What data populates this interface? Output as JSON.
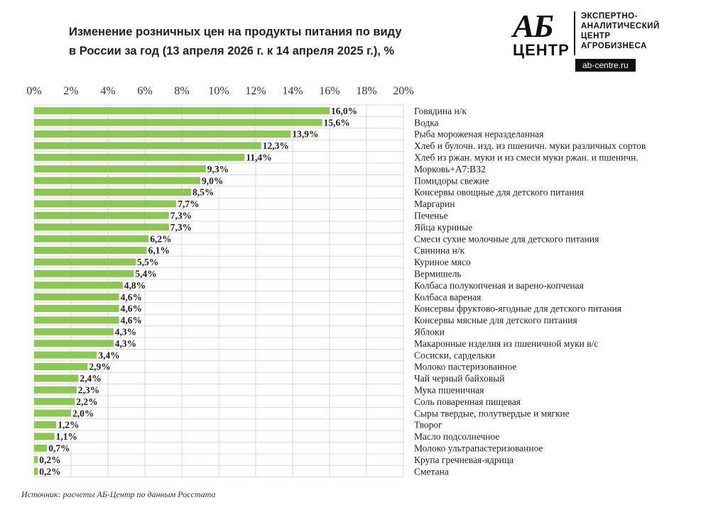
{
  "chart_data": {
    "type": "bar",
    "orientation": "horizontal",
    "title": "Изменение розничных цен на продукты питания по виду в России за год (13 апреля 2026 г. к 14 апреля 2025 г.), %",
    "title_lines": [
      "Изменение розничных цен на продукты питания по виду",
      "в России за год (13 апреля 2026 г. к 14 апреля 2025 г.), %"
    ],
    "xlim": [
      0,
      20
    ],
    "x_ticks": [
      "0%",
      "2%",
      "4%",
      "6%",
      "8%",
      "10%",
      "12%",
      "14%",
      "16%",
      "18%",
      "20%"
    ],
    "grid": true,
    "bar_color": "#8cc653",
    "categories": [
      "Говядина н/к",
      "Водка",
      "Рыба мороженая неразделанная",
      "Хлеб и булочн. изд. из пшеничн. муки различных сортов",
      "Хлеб из ржан. муки и из смеси муки ржан. и пшеничн.",
      "Морковь+A7:B32",
      "Помидоры свежие",
      "Консервы овощные для детского питания",
      "Маргарин",
      "Печенье",
      "Яйца куриные",
      "Смеси сухие молочные для детского питания",
      "Свинина н/к",
      "Куриное мясо",
      "Вермишель",
      "Колбаса полукопченая и варено-копченая",
      "Колбаса вареная",
      "Консервы фруктово-ягодные для детского питания",
      "Консервы мясные для детского питания",
      "Яблоки",
      "Макаронные изделия из пшеничной муки в/с",
      "Сосиски, сардельки",
      "Молоко пастеризованное",
      "Чай черный байховый",
      "Мука пшеничная",
      "Соль поваренная пищевая",
      "Сыры твердые, полутвердые и мягкие",
      "Творог",
      "Масло подсолнечное",
      "Молоко ультрапастеризованное",
      "Крупа гречневая-ядрица",
      "Сметана"
    ],
    "values": [
      16.0,
      15.6,
      13.9,
      12.3,
      11.4,
      9.3,
      9.0,
      8.5,
      7.7,
      7.3,
      7.3,
      6.2,
      6.1,
      5.5,
      5.4,
      4.8,
      4.6,
      4.6,
      4.6,
      4.3,
      4.3,
      3.4,
      2.9,
      2.4,
      2.3,
      2.2,
      2.0,
      1.2,
      1.1,
      0.7,
      0.2,
      0.2
    ],
    "value_labels": [
      "16,0%",
      "15,6%",
      "13,9%",
      "12,3%",
      "11,4%",
      "9,3%",
      "9,0%",
      "8,5%",
      "7,7%",
      "7,3%",
      "7,3%",
      "6,2%",
      "6,1%",
      "5,5%",
      "5,4%",
      "4,8%",
      "4,6%",
      "4,6%",
      "4,6%",
      "4,3%",
      "4,3%",
      "3,4%",
      "2,9%",
      "2,4%",
      "2,3%",
      "2,2%",
      "2,0%",
      "1,2%",
      "1,1%",
      "0,7%",
      "0,2%",
      "0,2%"
    ]
  },
  "logo": {
    "mark_top": "АБ",
    "mark_bottom": "ЦЕНТР",
    "line1": "ЭКСПЕРТНО-",
    "line2": "АНАЛИТИЧЕСКИЙ",
    "line3": "ЦЕНТР",
    "line4": "АГРОБИЗНЕСА",
    "url": "ab-centre.ru"
  },
  "source": "Источник: расчеты АБ-Центр по данным Росстата"
}
